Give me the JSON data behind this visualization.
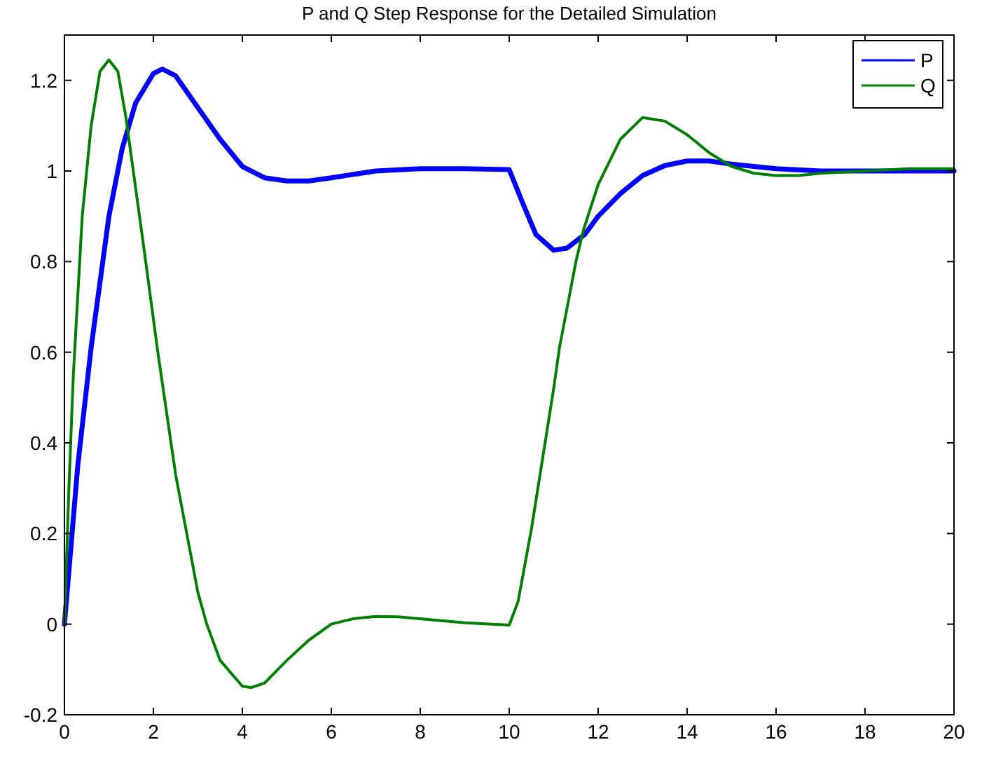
{
  "chart_data": {
    "type": "line",
    "title": "P and Q Step Response for the Detailed Simulation",
    "xlim": [
      0,
      20
    ],
    "ylim": [
      -0.2,
      1.3
    ],
    "xticks": [
      0,
      2,
      4,
      6,
      8,
      10,
      12,
      14,
      16,
      18,
      20
    ],
    "yticks": [
      -0.2,
      0,
      0.2,
      0.4,
      0.6,
      0.8,
      1,
      1.2
    ],
    "grid": false,
    "legend": "top right",
    "series": [
      {
        "name": "P",
        "color": "#0000ff",
        "x": [
          0,
          0.3,
          0.6,
          1,
          1.3,
          1.6,
          2,
          2.2,
          2.5,
          3,
          3.5,
          4,
          4.5,
          5,
          5.5,
          6,
          7,
          8,
          9,
          10,
          10.3,
          10.6,
          11,
          11.3,
          11.7,
          12,
          12.5,
          13,
          13.5,
          14,
          14.5,
          15,
          16,
          17,
          18,
          20
        ],
        "values": [
          0,
          0.35,
          0.61,
          0.9,
          1.05,
          1.15,
          1.215,
          1.225,
          1.21,
          1.14,
          1.07,
          1.01,
          0.985,
          0.978,
          0.978,
          0.985,
          1.0,
          1.005,
          1.005,
          1.003,
          0.93,
          0.86,
          0.825,
          0.83,
          0.86,
          0.9,
          0.95,
          0.99,
          1.012,
          1.022,
          1.022,
          1.015,
          1.005,
          1.0,
          1.0,
          1.0
        ]
      },
      {
        "name": "Q",
        "color": "#008000",
        "x": [
          0,
          0.1,
          0.2,
          0.4,
          0.6,
          0.8,
          1,
          1.2,
          1.38,
          1.8,
          2.1,
          2.5,
          3,
          3.2,
          3.5,
          4,
          4.2,
          4.5,
          5,
          5.5,
          6,
          6.5,
          7,
          7.5,
          8,
          9,
          10,
          10.2,
          10.5,
          11,
          11.13,
          11.5,
          11.67,
          12,
          12.5,
          13,
          13.5,
          14,
          14.5,
          15,
          15.5,
          16,
          16.5,
          17,
          18,
          19,
          20
        ],
        "values": [
          0,
          0.3,
          0.55,
          0.9,
          1.1,
          1.22,
          1.245,
          1.22,
          1.12,
          0.82,
          0.6,
          0.33,
          0.07,
          0,
          -0.08,
          -0.137,
          -0.14,
          -0.13,
          -0.08,
          -0.035,
          0,
          0.012,
          0.017,
          0.016,
          0.012,
          0.003,
          -0.002,
          0.05,
          0.21,
          0.52,
          0.61,
          0.8,
          0.87,
          0.97,
          1.07,
          1.118,
          1.11,
          1.08,
          1.04,
          1.01,
          0.995,
          0.99,
          0.99,
          0.995,
          1.0,
          1.005,
          1.005
        ]
      }
    ]
  }
}
